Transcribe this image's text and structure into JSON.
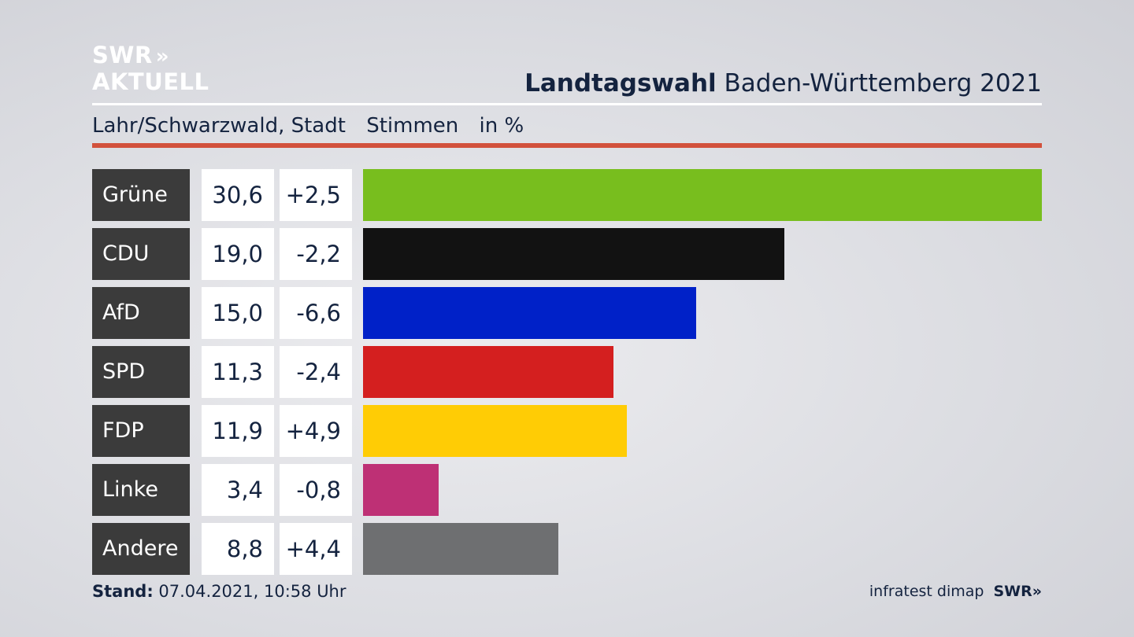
{
  "brand": {
    "logo_line1": "SWR",
    "logo_arrows": "»",
    "logo_line2": "AKTUELL"
  },
  "header": {
    "title_bold": "Landtagswahl",
    "title_rest": "Baden-Württemberg 2021"
  },
  "subheader": {
    "region": "Lahr/Schwarzwald, Stadt",
    "measure": "Stimmen",
    "unit": "in %"
  },
  "colors": {
    "accent_rule": "#d2513c"
  },
  "chart_data": {
    "type": "bar",
    "orientation": "horizontal",
    "categories": [
      "Grüne",
      "CDU",
      "AfD",
      "SPD",
      "FDP",
      "Linke",
      "Andere"
    ],
    "values": [
      30.6,
      19.0,
      15.0,
      11.3,
      11.9,
      3.4,
      8.8
    ],
    "value_labels": [
      "30,6",
      "19,0",
      "15,0",
      "11,3",
      "11,9",
      "3,4",
      "8,8"
    ],
    "diff_labels": [
      "+2,5",
      "-2,2",
      "-6,6",
      "-2,4",
      "+4,9",
      "-0,8",
      "+4,4"
    ],
    "diffs": [
      2.5,
      -2.2,
      -6.6,
      -2.4,
      4.9,
      -0.8,
      4.4
    ],
    "colors": [
      "#78be1e",
      "#121212",
      "#0021c8",
      "#d41f1f",
      "#ffcc05",
      "#be3075",
      "#6e6f71"
    ],
    "xlim": [
      0,
      30.6
    ]
  },
  "footer": {
    "stand_label": "Stand:",
    "stand_value": "07.04.2021, 10:58 Uhr",
    "source": "infratest dimap",
    "source_brand": "SWR»"
  }
}
